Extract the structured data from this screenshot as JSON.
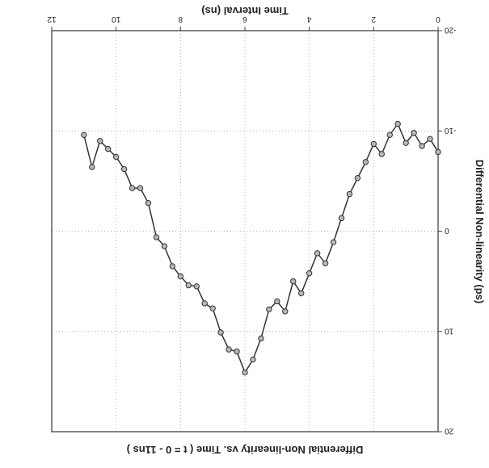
{
  "chart_data": {
    "type": "line",
    "title": "Differential Non-linearity vs. Time ( t = 0 - 11ns )",
    "xlabel": "Time Interval (ns)",
    "ylabel": "Differential Non-linearity (ps)",
    "xlim": [
      0,
      12
    ],
    "ylim": [
      -20,
      20
    ],
    "x_ticks": [
      "0",
      "2",
      "4",
      "6",
      "8",
      "10",
      "12"
    ],
    "y_ticks": [
      "-20",
      "-10",
      "0",
      "10",
      "20"
    ],
    "grid": true,
    "legend": "none",
    "orientation": "rotated 180°",
    "series": [
      {
        "x": [
          0.0,
          0.25,
          0.5,
          0.75,
          1.0,
          1.25,
          1.5,
          1.75,
          2.0,
          2.25,
          2.5,
          2.75,
          3.0,
          3.25,
          3.5,
          3.75,
          4.0,
          4.25,
          4.5,
          4.75,
          5.0,
          5.25,
          5.5,
          5.75,
          6.0,
          6.25,
          6.5,
          6.75,
          7.0,
          7.25,
          7.5,
          7.75,
          8.0,
          8.25,
          8.5,
          8.75,
          9.0,
          9.25,
          9.5,
          9.75,
          10.0,
          10.25,
          10.5,
          10.75,
          11.0
        ],
        "y": [
          -7.9,
          -9.2,
          -8.5,
          -9.8,
          -8.8,
          -10.7,
          -9.6,
          -7.7,
          -8.7,
          -6.9,
          -5.3,
          -3.7,
          -1.3,
          1.1,
          3.2,
          2.2,
          4.2,
          6.2,
          5.0,
          8.0,
          7.0,
          7.8,
          10.7,
          12.8,
          14.1,
          12.0,
          11.8,
          10.1,
          7.7,
          7.2,
          5.5,
          5.4,
          4.5,
          3.5,
          1.5,
          0.6,
          -2.8,
          -4.3,
          -4.3,
          -6.2,
          -7.4,
          -8.2,
          -9.0,
          -6.4,
          -9.6
        ]
      }
    ],
    "line_color": "#333333",
    "marker_fill": "#b8b8b8"
  }
}
